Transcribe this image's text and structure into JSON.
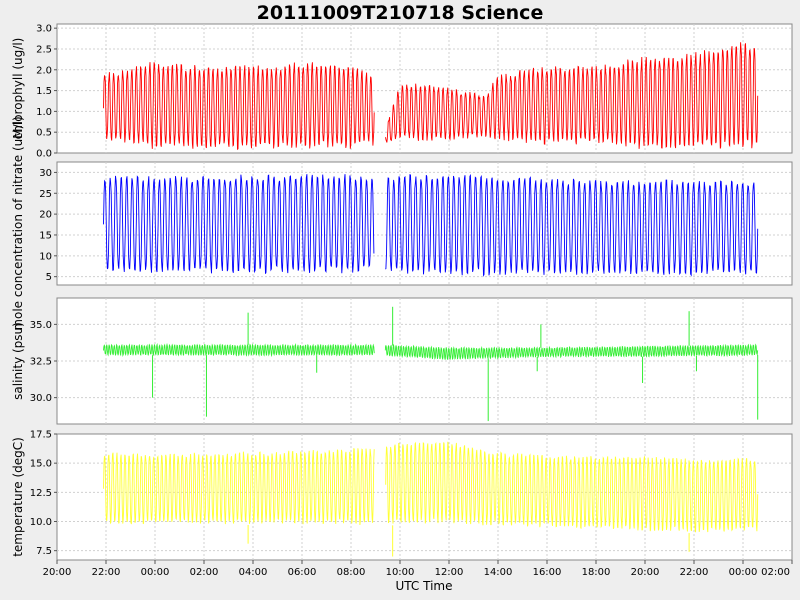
{
  "chart_data": {
    "type": "line",
    "title": "20111009T210718 Science",
    "xlabel": "UTC Time",
    "x_ticks": [
      "20:00",
      "22:00",
      "00:00",
      "02:00",
      "04:00",
      "06:00",
      "08:00",
      "10:00",
      "12:00",
      "14:00",
      "16:00",
      "18:00",
      "20:00",
      "22:00",
      "00:00",
      "02:00"
    ],
    "x_range_hours": [
      0,
      30
    ],
    "data_x_range_hours": [
      1.9,
      28.6
    ],
    "grid": true,
    "panels": [
      {
        "ylabel": "chlorophyll (ug/l)",
        "color": "#ff0000",
        "ylim": [
          0,
          3.1
        ],
        "ticks": [
          0.0,
          0.5,
          1.0,
          1.5,
          2.0,
          2.5,
          3.0
        ],
        "tick_labels": [
          "0.0",
          "0.5",
          "1.0",
          "1.5",
          "2.0",
          "2.5",
          "3.0"
        ],
        "envelope": {
          "hours": [
            1.9,
            4,
            6,
            8,
            10,
            12,
            13,
            13.3,
            14,
            16,
            17.5,
            18,
            20,
            22,
            24,
            26,
            28,
            28.6
          ],
          "upper": [
            1.9,
            2.2,
            2.1,
            2.1,
            2.2,
            2.1,
            1.85,
            0.4,
            1.7,
            1.6,
            1.4,
            1.9,
            2.1,
            2.1,
            2.3,
            2.4,
            2.7,
            2.6
          ],
          "lower": [
            0.3,
            0.1,
            0.1,
            0.1,
            0.1,
            0.1,
            0.2,
            0.2,
            0.3,
            0.3,
            0.4,
            0.3,
            0.2,
            0.2,
            0.1,
            0.1,
            0.1,
            0.1
          ]
        },
        "cycles": 145,
        "gaps_hours": [
          [
            12.95,
            13.4
          ]
        ],
        "spikes": [],
        "baseline_noise": 0.12
      },
      {
        "ylabel": "mole concentration of nitrate (uM/l)",
        "color": "#0000ff",
        "ylim": [
          3,
          32.5
        ],
        "ticks": [
          5,
          10,
          15,
          20,
          25,
          30
        ],
        "tick_labels": [
          "5",
          "10",
          "15",
          "20",
          "25",
          "30"
        ],
        "envelope": {
          "hours": [
            1.9,
            6,
            10,
            13,
            13.4,
            16,
            20,
            24,
            28.6
          ],
          "upper": [
            29.5,
            29.5,
            30,
            29.5,
            29.5,
            30,
            29,
            28.5,
            28.5
          ],
          "lower": [
            5.5,
            5.5,
            5.5,
            5.5,
            5.5,
            5.0,
            5.0,
            5.0,
            5.0
          ]
        },
        "cycles": 120,
        "gaps_hours": [
          [
            12.95,
            13.4
          ]
        ],
        "spikes": [],
        "baseline_noise": 0.6
      },
      {
        "ylabel": "salinity (psu)",
        "color": "#33ee33",
        "ylim": [
          28.2,
          36.8
        ],
        "ticks": [
          30.0,
          32.5,
          35.0
        ],
        "tick_labels": [
          "30.0",
          "32.5",
          "35.0"
        ],
        "envelope": {
          "hours": [
            1.9,
            10,
            13,
            16,
            20,
            24,
            28.6
          ],
          "upper": [
            33.6,
            33.6,
            33.6,
            33.4,
            33.4,
            33.5,
            33.6
          ],
          "lower": [
            32.9,
            32.9,
            32.9,
            32.6,
            32.8,
            32.8,
            32.9
          ]
        },
        "cycles": 260,
        "gaps_hours": [
          [
            12.95,
            13.4
          ]
        ],
        "spikes": [
          [
            3.9,
            30.0
          ],
          [
            6.1,
            28.7
          ],
          [
            7.8,
            35.8
          ],
          [
            10.6,
            31.7
          ],
          [
            13.7,
            36.2
          ],
          [
            17.6,
            28.4
          ],
          [
            19.6,
            31.8
          ],
          [
            19.75,
            35.0
          ],
          [
            23.9,
            31.0
          ],
          [
            25.8,
            35.9
          ],
          [
            26.1,
            31.8
          ],
          [
            28.6,
            28.5
          ]
        ],
        "baseline_noise": 0.1
      },
      {
        "ylabel": "temperature (degC)",
        "color": "#ffff33",
        "ylim": [
          6.7,
          17.5
        ],
        "ticks": [
          7.5,
          10.0,
          12.5,
          15.0,
          17.5
        ],
        "tick_labels": [
          "7.5",
          "10.0",
          "12.5",
          "15.0",
          "17.5"
        ],
        "envelope": {
          "hours": [
            1.9,
            6,
            10,
            13,
            14,
            16,
            18,
            20,
            22,
            24,
            26,
            28.6
          ],
          "upper": [
            16.0,
            15.9,
            16.2,
            16.5,
            17.0,
            17.0,
            16.0,
            15.8,
            15.7,
            15.8,
            15.4,
            15.6
          ],
          "lower": [
            9.7,
            9.7,
            9.7,
            9.6,
            9.7,
            9.7,
            9.5,
            9.4,
            9.3,
            9.1,
            9.0,
            9.0
          ]
        },
        "cycles": 160,
        "gaps_hours": [
          [
            12.95,
            13.4
          ]
        ],
        "spikes": [
          [
            7.8,
            8.1
          ],
          [
            13.7,
            7.0
          ],
          [
            25.8,
            7.4
          ]
        ],
        "baseline_noise": 0.15
      }
    ]
  }
}
